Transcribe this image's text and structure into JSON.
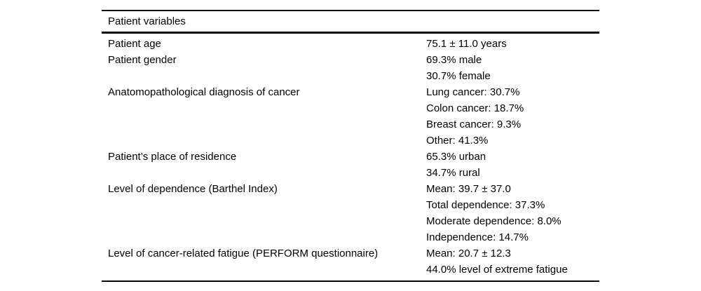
{
  "table": {
    "header": "Patient variables",
    "rows": [
      {
        "variable": "Patient age",
        "values": [
          "75.1 ± 11.0 years"
        ]
      },
      {
        "variable": "Patient gender",
        "values": [
          "69.3% male",
          "30.7% female"
        ]
      },
      {
        "variable": "Anatomopathological diagnosis of cancer",
        "values": [
          "Lung cancer: 30.7%",
          "Colon cancer: 18.7%",
          "Breast cancer: 9.3%",
          "Other: 41.3%"
        ]
      },
      {
        "variable": "Patient’s place of residence",
        "values": [
          "65.3% urban",
          "34.7% rural"
        ]
      },
      {
        "variable": "Level of dependence (Barthel Index)",
        "values": [
          "Mean: 39.7 ± 37.0",
          "Total dependence: 37.3%",
          "Moderate dependence: 8.0%",
          "Independence: 14.7%"
        ]
      },
      {
        "variable": "Level of cancer-related fatigue (PERFORM questionnaire)",
        "values": [
          "Mean: 20.7 ± 12.3",
          "44.0% level of extreme fatigue"
        ]
      }
    ],
    "colors": {
      "text": "#000000",
      "background": "#ffffff",
      "rule": "#000000"
    }
  }
}
